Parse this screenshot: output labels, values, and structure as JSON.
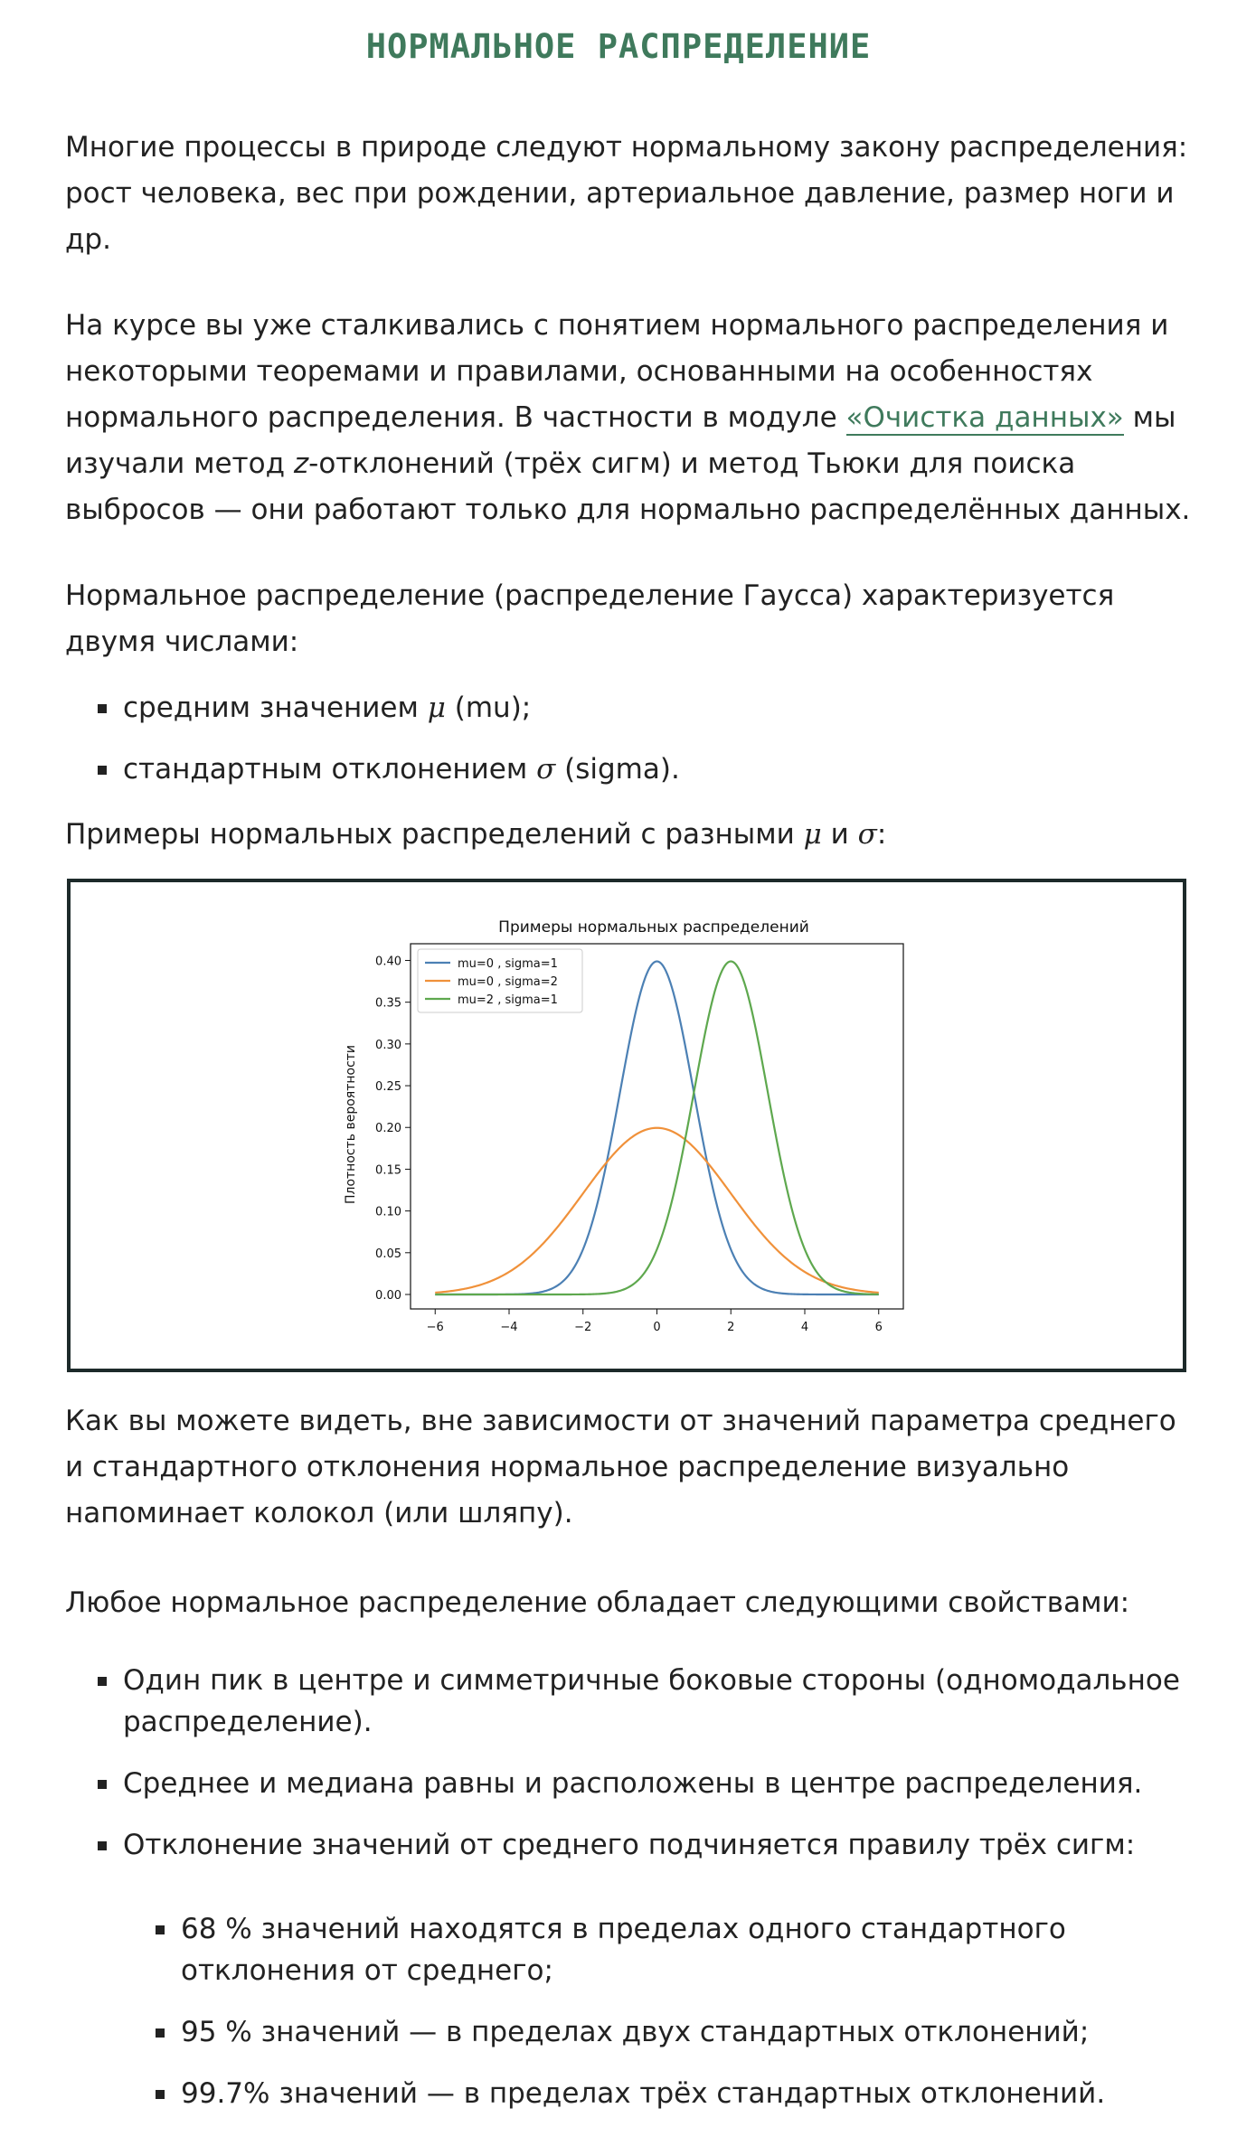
{
  "title": "НОРМАЛЬНОЕ РАСПРЕДЕЛЕНИЕ",
  "intro": {
    "p1": "Многие процессы в природе следуют нормальному закону распределения: рост человека, вес при рождении, артериальное давление, размер ноги и др.",
    "p2_before_link": "На курсе вы уже сталкивались с понятием нормального распределения и некоторыми теоремами и правилами, основанными на особенностях нормального распределения. В частности в модуле ",
    "p2_link": "«Очистка данных»",
    "p2_mid": " мы изучали метод ",
    "p2_z": "z",
    "p2_after": "-отклонений (трёх сигм) и метод Тьюки для поиска выбросов — они работают только для нормально распределённых данных.",
    "p3": "Нормальное распределение (распределение Гаусса) характеризуется двумя числами:"
  },
  "params": [
    {
      "text": "средним значением ",
      "symbol": "μ",
      "suffix": " (mu);"
    },
    {
      "text": "стандартным отклонением ",
      "symbol": "σ",
      "suffix": " (sigma)."
    }
  ],
  "examples_line": {
    "text": "Примеры нормальных распределений с разными ",
    "mu": "μ",
    "and": " и ",
    "sigma": "σ",
    "end": ":"
  },
  "chart_data": {
    "type": "line",
    "title": "Примеры нормальных распределений",
    "xlabel": "",
    "ylabel": "Плотность вероятности",
    "xlim": [
      -6,
      6
    ],
    "ylim": [
      0,
      0.42
    ],
    "x_ticks": [
      -6,
      -4,
      -2,
      0,
      2,
      4,
      6
    ],
    "x_tick_labels": [
      "−6",
      "−4",
      "−2",
      "0",
      "2",
      "4",
      "6"
    ],
    "y_ticks": [
      0.0,
      0.05,
      0.1,
      0.15,
      0.2,
      0.25,
      0.3,
      0.35,
      0.4
    ],
    "y_tick_labels": [
      "0.00",
      "0.05",
      "0.10",
      "0.15",
      "0.20",
      "0.25",
      "0.30",
      "0.35",
      "0.40"
    ],
    "grid": false,
    "legend": "top-left",
    "series": [
      {
        "name": "mu=0 , sigma=1",
        "mu": 0,
        "sigma": 1,
        "color": "#4c80b4"
      },
      {
        "name": "mu=0 , sigma=2",
        "mu": 0,
        "sigma": 2,
        "color": "#f0913a"
      },
      {
        "name": "mu=2 , sigma=1",
        "mu": 2,
        "sigma": 1,
        "color": "#5ea84e"
      }
    ]
  },
  "after_chart": {
    "p1": "Как вы можете видеть, вне зависимости от значений параметра среднего и стандартного отклонения нормальное распределение визуально напоминает колокол (или шляпу).",
    "p2": "Любое нормальное распределение обладает следующими свойствами:"
  },
  "properties": [
    "Один пик в центре и симметричные боковые стороны (одномодальное распределение).",
    "Среднее и медиана равны и расположены в центре распределения.",
    "Отклонение значений от среднего подчиняется правилу трёх сигм:"
  ],
  "sigma_rule": [
    "68 % значений находятся в пределах одного стандартного отклонения от среднего;",
    "95 % значений — в пределах двух стандартных отклонений;",
    "99.7% значений — в пределах трёх стандартных отклонений."
  ],
  "colors": {
    "accent": "#3f7a5c",
    "text": "#222222",
    "chart_border": "#1d2a2a"
  }
}
